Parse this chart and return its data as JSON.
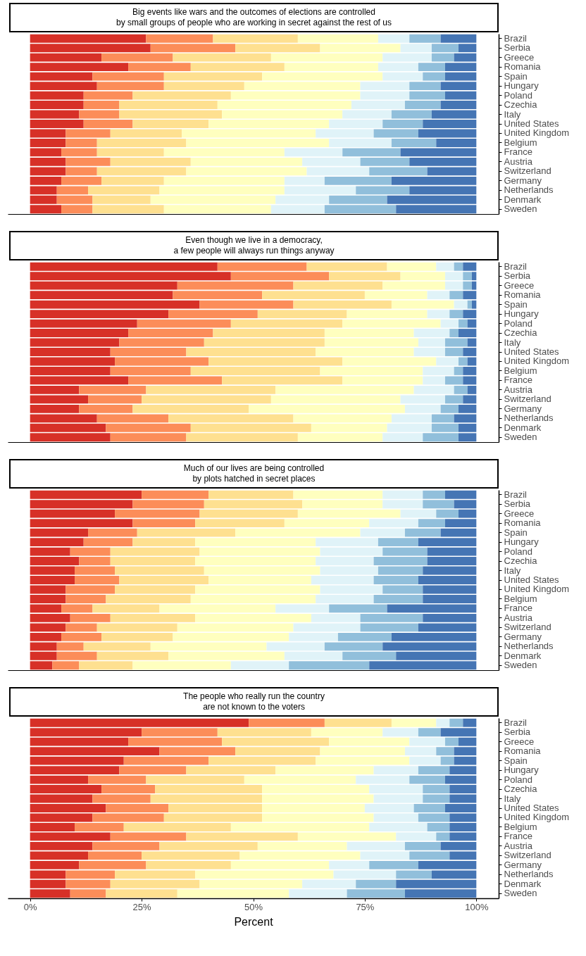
{
  "chart_data": [
    {
      "type": "bar",
      "orientation": "horizontal",
      "stacked": true,
      "tick_labels": "y",
      "title": "Big events like wars and the outcomes of elections are controlled\nby small groups of people who are working in secret against the rest of us",
      "categories": [
        "Brazil",
        "Serbia",
        "Greece",
        "Romania",
        "Spain",
        "Hungary",
        "Poland",
        "Czechia",
        "Italy",
        "United States",
        "United Kingdom",
        "Belgium",
        "France",
        "Austria",
        "Switzerland",
        "Germany",
        "Netherlands",
        "Denmark",
        "Sweden"
      ],
      "xlim": [
        -5,
        105
      ],
      "series": [
        {
          "color": "#d73027",
          "values": [
            26,
            27,
            16,
            22,
            14,
            15,
            12,
            12,
            11,
            12,
            8,
            8,
            7,
            8,
            8,
            7,
            6,
            6,
            7
          ]
        },
        {
          "color": "#fc8d59",
          "values": [
            15,
            19,
            16,
            14,
            16,
            15,
            11,
            8,
            9,
            11,
            10,
            7,
            8,
            10,
            7,
            9,
            7,
            8,
            7
          ]
        },
        {
          "color": "#fee090",
          "values": [
            19,
            19,
            22,
            21,
            22,
            18,
            22,
            22,
            23,
            17,
            16,
            20,
            15,
            18,
            20,
            14,
            16,
            13,
            16
          ]
        },
        {
          "color": "#ffffbf",
          "values": [
            18,
            18,
            25,
            21,
            27,
            26,
            29,
            30,
            27,
            27,
            30,
            32,
            27,
            25,
            27,
            27,
            28,
            28,
            24
          ]
        },
        {
          "color": "#e0f3f8",
          "values": [
            7,
            7,
            11,
            9,
            9,
            11,
            11,
            12,
            11,
            12,
            13,
            14,
            13,
            13,
            14,
            9,
            16,
            12,
            12
          ]
        },
        {
          "color": "#91bfdb",
          "values": [
            7,
            6,
            5,
            6,
            5,
            7,
            8,
            8,
            9,
            9,
            10,
            10,
            13,
            11,
            13,
            15,
            12,
            13,
            16
          ]
        },
        {
          "color": "#4575b4",
          "values": [
            8,
            4,
            5,
            7,
            7,
            8,
            7,
            8,
            10,
            12,
            13,
            9,
            17,
            15,
            11,
            19,
            15,
            20,
            18
          ]
        }
      ]
    },
    {
      "type": "bar",
      "orientation": "horizontal",
      "stacked": true,
      "tick_labels": "y",
      "title": "Even though we live in a democracy,\na few people will always run things anyway",
      "categories": [
        "Brazil",
        "Serbia",
        "Greece",
        "Romania",
        "Spain",
        "Hungary",
        "Poland",
        "Czechia",
        "Italy",
        "United States",
        "United Kingdom",
        "Belgium",
        "France",
        "Austria",
        "Switzerland",
        "Germany",
        "Netherlands",
        "Denmark",
        "Sweden"
      ],
      "xlim": [
        -5,
        105
      ],
      "series": [
        {
          "color": "#d73027",
          "values": [
            42,
            45,
            33,
            32,
            38,
            31,
            24,
            22,
            20,
            18,
            19,
            18,
            22,
            11,
            13,
            11,
            15,
            17,
            18
          ]
        },
        {
          "color": "#fc8d59",
          "values": [
            20,
            22,
            26,
            20,
            21,
            20,
            21,
            19,
            19,
            17,
            21,
            18,
            21,
            15,
            12,
            12,
            16,
            19,
            17
          ]
        },
        {
          "color": "#fee090",
          "values": [
            18,
            16,
            20,
            23,
            22,
            20,
            25,
            25,
            27,
            29,
            30,
            29,
            27,
            29,
            29,
            26,
            28,
            27,
            25
          ]
        },
        {
          "color": "#ffffbf",
          "values": [
            11,
            10,
            14,
            14,
            14,
            18,
            22,
            20,
            21,
            22,
            21,
            23,
            18,
            31,
            29,
            35,
            22,
            17,
            19
          ]
        },
        {
          "color": "#e0f3f8",
          "values": [
            4,
            4,
            4,
            5,
            3,
            5,
            4,
            8,
            6,
            7,
            5,
            7,
            5,
            9,
            10,
            8,
            9,
            10,
            9
          ]
        },
        {
          "color": "#91bfdb",
          "values": [
            2,
            2,
            2,
            3,
            1,
            3,
            2,
            2,
            5,
            4,
            2,
            2,
            4,
            3,
            4,
            4,
            5,
            6,
            8
          ]
        },
        {
          "color": "#4575b4",
          "values": [
            3,
            1,
            1,
            3,
            1,
            3,
            2,
            4,
            2,
            3,
            2,
            3,
            3,
            2,
            3,
            4,
            5,
            4,
            4
          ]
        }
      ]
    },
    {
      "type": "bar",
      "orientation": "horizontal",
      "stacked": true,
      "tick_labels": "y",
      "title": "Much of our lives are being controlled\nby plots hatched in secret places",
      "categories": [
        "Brazil",
        "Serbia",
        "Greece",
        "Romania",
        "Spain",
        "Hungary",
        "Poland",
        "Czechia",
        "Italy",
        "United States",
        "United Kingdom",
        "Belgium",
        "France",
        "Austria",
        "Switzerland",
        "Germany",
        "Netherlands",
        "Denmark",
        "Sweden"
      ],
      "xlim": [
        -5,
        105
      ],
      "series": [
        {
          "color": "#d73027",
          "values": [
            25,
            23,
            19,
            23,
            13,
            12,
            9,
            11,
            10,
            10,
            8,
            8,
            7,
            9,
            8,
            7,
            6,
            6,
            5
          ]
        },
        {
          "color": "#fc8d59",
          "values": [
            15,
            16,
            19,
            14,
            11,
            11,
            9,
            7,
            9,
            10,
            11,
            9,
            7,
            9,
            7,
            9,
            6,
            9,
            6
          ]
        },
        {
          "color": "#fee090",
          "values": [
            19,
            22,
            22,
            20,
            22,
            14,
            20,
            19,
            20,
            20,
            18,
            19,
            15,
            19,
            18,
            16,
            15,
            16,
            12
          ]
        },
        {
          "color": "#ffffbf",
          "values": [
            20,
            18,
            23,
            19,
            28,
            27,
            27,
            27,
            26,
            23,
            28,
            28,
            26,
            26,
            26,
            26,
            26,
            26,
            22
          ]
        },
        {
          "color": "#e0f3f8",
          "values": [
            9,
            9,
            8,
            11,
            10,
            14,
            14,
            13,
            13,
            14,
            14,
            13,
            12,
            11,
            15,
            11,
            13,
            13,
            13
          ]
        },
        {
          "color": "#91bfdb",
          "values": [
            5,
            7,
            5,
            6,
            8,
            9,
            10,
            12,
            10,
            10,
            9,
            11,
            13,
            14,
            13,
            12,
            13,
            12,
            18
          ]
        },
        {
          "color": "#4575b4",
          "values": [
            7,
            5,
            4,
            7,
            8,
            13,
            11,
            11,
            12,
            13,
            12,
            12,
            20,
            12,
            13,
            19,
            21,
            18,
            24
          ]
        }
      ]
    },
    {
      "type": "bar",
      "orientation": "horizontal",
      "stacked": true,
      "xlabel": "Percent",
      "title": "The people who really run the country\nare not known to the voters",
      "categories": [
        "Brazil",
        "Serbia",
        "Greece",
        "Romania",
        "Spain",
        "Hungary",
        "Poland",
        "Czechia",
        "Italy",
        "United States",
        "United Kingdom",
        "Belgium",
        "France",
        "Austria",
        "Switzerland",
        "Germany",
        "Netherlands",
        "Denmark",
        "Sweden"
      ],
      "xlim": [
        -5,
        105
      ],
      "xticks": [
        {
          "value": 0,
          "label": "0%"
        },
        {
          "value": 25,
          "label": "25%"
        },
        {
          "value": 50,
          "label": "50%"
        },
        {
          "value": 75,
          "label": "75%"
        },
        {
          "value": 100,
          "label": "100%"
        }
      ],
      "series": [
        {
          "color": "#d73027",
          "values": [
            49,
            25,
            22,
            29,
            21,
            20,
            13,
            16,
            14,
            17,
            14,
            10,
            18,
            14,
            13,
            11,
            8,
            8,
            9
          ]
        },
        {
          "color": "#fc8d59",
          "values": [
            17,
            17,
            21,
            17,
            19,
            15,
            13,
            12,
            13,
            14,
            16,
            11,
            17,
            15,
            12,
            15,
            11,
            10,
            8
          ]
        },
        {
          "color": "#fee090",
          "values": [
            15,
            21,
            24,
            19,
            24,
            20,
            22,
            24,
            25,
            21,
            22,
            24,
            25,
            22,
            22,
            19,
            18,
            20,
            16
          ]
        },
        {
          "color": "#ffffbf",
          "values": [
            10,
            16,
            18,
            19,
            21,
            22,
            25,
            24,
            25,
            23,
            25,
            31,
            22,
            20,
            27,
            22,
            31,
            23,
            25
          ]
        },
        {
          "color": "#e0f3f8",
          "values": [
            3,
            8,
            8,
            7,
            7,
            10,
            12,
            12,
            11,
            11,
            10,
            13,
            9,
            13,
            11,
            9,
            14,
            12,
            13
          ]
        },
        {
          "color": "#91bfdb",
          "values": [
            3,
            5,
            3,
            4,
            3,
            7,
            8,
            6,
            6,
            7,
            7,
            5,
            3,
            8,
            9,
            11,
            8,
            9,
            13
          ]
        },
        {
          "color": "#4575b4",
          "values": [
            3,
            8,
            4,
            5,
            5,
            6,
            7,
            6,
            6,
            7,
            6,
            6,
            6,
            8,
            6,
            13,
            10,
            18,
            16
          ]
        }
      ]
    }
  ]
}
